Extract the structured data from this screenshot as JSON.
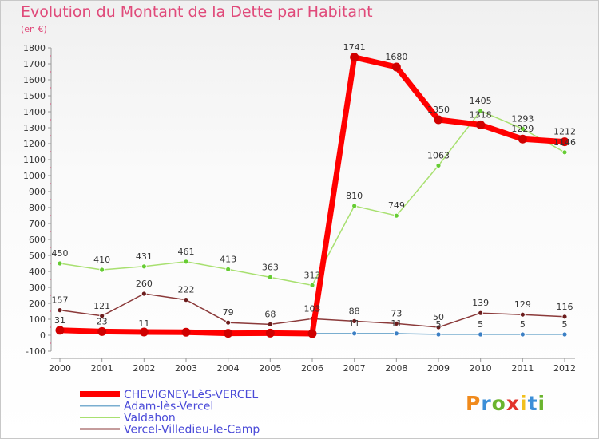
{
  "title": "Evolution du Montant de la Dette par Habitant",
  "unit_label": "(en €)",
  "logo_text": "Proxiti",
  "chart_data": {
    "type": "line",
    "x": [
      "2000",
      "2001",
      "2002",
      "2003",
      "2004",
      "2005",
      "2006",
      "2007",
      "2008",
      "2009",
      "2010",
      "2011",
      "2012"
    ],
    "ylim": [
      -100,
      1800
    ],
    "yticks": [
      -100,
      0,
      100,
      200,
      300,
      400,
      500,
      600,
      700,
      800,
      900,
      1000,
      1100,
      1200,
      1300,
      1400,
      1500,
      1600,
      1700,
      1800
    ],
    "grid": false,
    "legend_position": "bottom-left",
    "series": [
      {
        "name": "CHEVIGNEY-LèS-VERCEL",
        "color": "#ff0000",
        "point_color": "#d00000",
        "width": 7,
        "values": [
          31,
          23,
          20,
          19,
          12,
          13,
          10,
          1741,
          1680,
          1350,
          1318,
          1229,
          1212
        ],
        "labels": [
          "31",
          "23",
          "",
          "",
          "",
          "",
          "",
          "1741",
          "1680",
          "1350",
          "1318",
          "1229",
          "1212"
        ]
      },
      {
        "name": "Adam-lès-Vercel",
        "color": "#7aaed0",
        "point_color": "#3b7fc4",
        "width": 1.5,
        "values": [
          20,
          15,
          11,
          11,
          10,
          10,
          11,
          11,
          11,
          5,
          5,
          5,
          5
        ],
        "labels": [
          "",
          "",
          "11",
          "",
          "",
          "",
          "",
          "11",
          "11",
          "5",
          "5",
          "5",
          "5"
        ]
      },
      {
        "name": "Valdahon",
        "color": "#a8e070",
        "point_color": "#66cc33",
        "width": 1.5,
        "values": [
          450,
          410,
          431,
          461,
          413,
          363,
          313,
          810,
          749,
          1063,
          1405,
          1293,
          1146
        ],
        "labels": [
          "450",
          "410",
          "431",
          "461",
          "413",
          "363",
          "313",
          "810",
          "749",
          "1063",
          "1405",
          "1293",
          "1146"
        ]
      },
      {
        "name": "Vercel-Villedieu-le-Camp",
        "color": "#8b3a3a",
        "point_color": "#6b1c1c",
        "width": 1.5,
        "values": [
          157,
          121,
          260,
          222,
          79,
          68,
          103,
          88,
          73,
          50,
          139,
          129,
          116
        ],
        "labels": [
          "157",
          "121",
          "260",
          "222",
          "79",
          "68",
          "103",
          "88",
          "73",
          "50",
          "139",
          "129",
          "116"
        ]
      }
    ]
  }
}
